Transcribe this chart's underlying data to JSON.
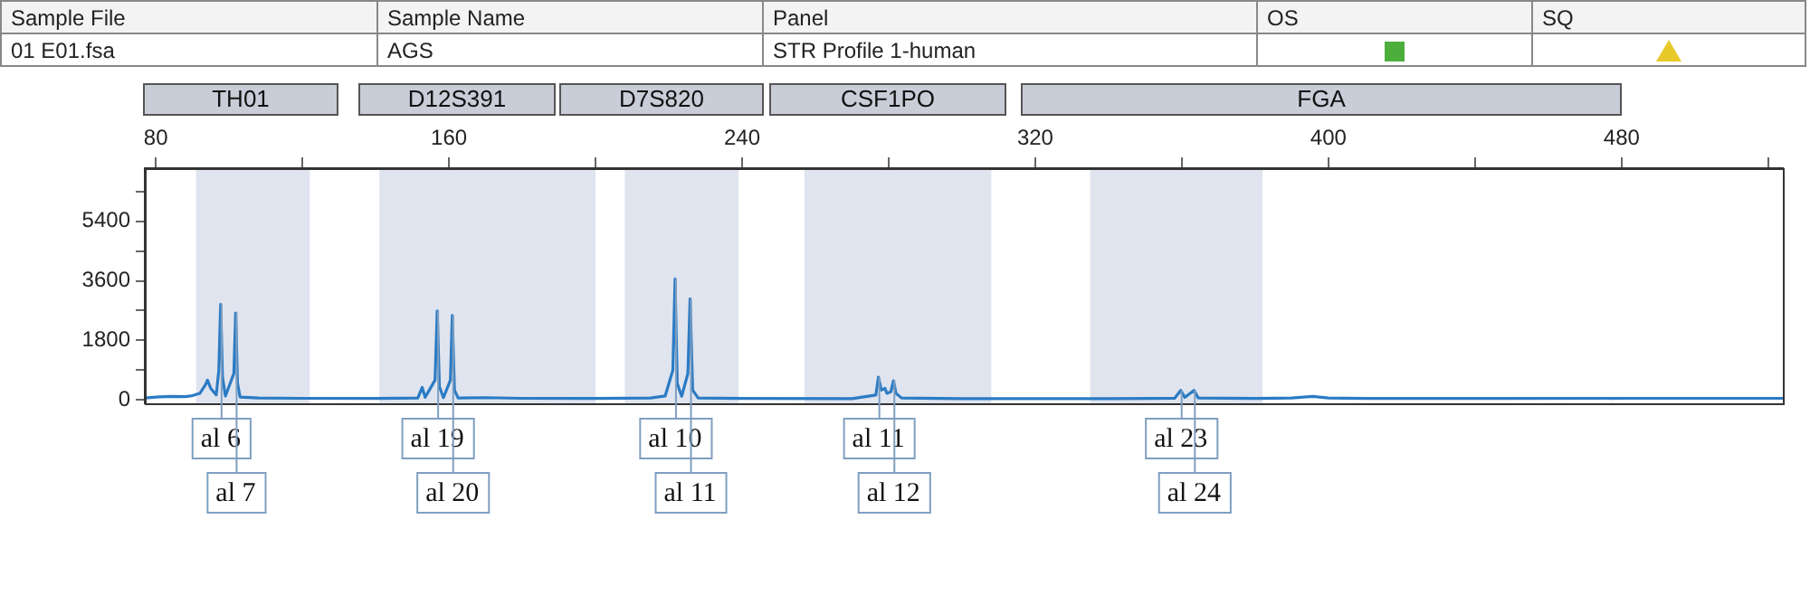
{
  "chart_data": {
    "type": "line",
    "color": "#2b7bc4",
    "marker": "none",
    "grid": false,
    "x": [
      77,
      80,
      84,
      88,
      90,
      92,
      93.5,
      94.1,
      95,
      96.5,
      97.2,
      97.7,
      98.2,
      99,
      101.3,
      101.8,
      102.3,
      103,
      108,
      120,
      140,
      151.5,
      152.7,
      153.5,
      156.2,
      156.8,
      157.4,
      158.5,
      160.4,
      160.9,
      161.5,
      162.5,
      170,
      180,
      200,
      215,
      219,
      221.1,
      221.7,
      222.3,
      223.5,
      225.2,
      225.8,
      226.5,
      228,
      240,
      270,
      276.5,
      277.2,
      278,
      279,
      279.5,
      280.6,
      281.3,
      282,
      283.5,
      300,
      340,
      358,
      359.7,
      360.8,
      363.3,
      364.5,
      380,
      390,
      395.7,
      400,
      410,
      450,
      480,
      500,
      524
    ],
    "values": [
      60,
      90,
      110,
      100,
      130,
      200,
      450,
      600,
      350,
      150,
      900,
      2890,
      700,
      120,
      800,
      2630,
      500,
      90,
      60,
      50,
      45,
      60,
      380,
      80,
      600,
      2690,
      400,
      70,
      600,
      2550,
      300,
      60,
      70,
      50,
      45,
      60,
      120,
      900,
      3650,
      500,
      110,
      800,
      3050,
      300,
      60,
      45,
      40,
      150,
      690,
      300,
      350,
      200,
      250,
      580,
      200,
      60,
      40,
      40,
      50,
      290,
      80,
      290,
      60,
      45,
      60,
      110,
      60,
      45,
      45,
      50,
      50,
      50
    ],
    "xlim": [
      77,
      524
    ],
    "xticks": [
      80,
      {
        "value": 120,
        "label": null
      },
      160,
      {
        "value": 200,
        "label": null
      },
      240,
      {
        "value": 280,
        "label": null
      },
      320,
      {
        "value": 360,
        "label": null
      },
      400,
      {
        "value": 440,
        "label": null
      },
      480,
      {
        "value": 520,
        "label": null
      }
    ],
    "ylim": [
      -100,
      7000
    ],
    "yticks": [
      0,
      {
        "value": 900,
        "label": null
      },
      1800,
      {
        "value": 2700,
        "label": null
      },
      3600,
      {
        "value": 4500,
        "label": null
      },
      5400,
      {
        "value": 6300,
        "label": null
      }
    ],
    "bands": [
      {
        "axis": "x",
        "from": 91,
        "to": 122,
        "color": "#dfe4ef"
      },
      {
        "axis": "x",
        "from": 141,
        "to": 200,
        "color": "#dfe4ef"
      },
      {
        "axis": "x",
        "from": 208,
        "to": 239,
        "color": "#dfe4ef"
      },
      {
        "axis": "x",
        "from": 257,
        "to": 308,
        "color": "#dfe4ef"
      },
      {
        "axis": "x",
        "from": 335,
        "to": 382,
        "color": "#dfe4ef"
      }
    ],
    "annotations": [
      "Sample File",
      "Sample Name",
      "Panel",
      "OS",
      "SQ",
      "01  E01.fsa",
      "AGS",
      "STR Profile 1-human",
      "TH01",
      "D12S391",
      "D7S820",
      "CSF1PO",
      "FGA",
      {
        "text": "al 6",
        "x": 97.7,
        "y": 2890
      },
      {
        "text": "al 7",
        "x": 101.8,
        "y": 2630
      },
      {
        "text": "al 19",
        "x": 156.8,
        "y": 2690
      },
      {
        "text": "al 20",
        "x": 160.9,
        "y": 2550
      },
      {
        "text": "al 10",
        "x": 221.7,
        "y": 3650
      },
      {
        "text": "al 11",
        "x": 225.8,
        "y": 3050
      },
      {
        "text": "al 11",
        "x": 277.2,
        "y": 690
      },
      {
        "text": "al 12",
        "x": 281.3,
        "y": 580
      },
      {
        "text": "al 23",
        "x": 359.7,
        "y": 290
      },
      {
        "text": "al 24",
        "x": 363.3,
        "y": 290
      }
    ]
  }
}
